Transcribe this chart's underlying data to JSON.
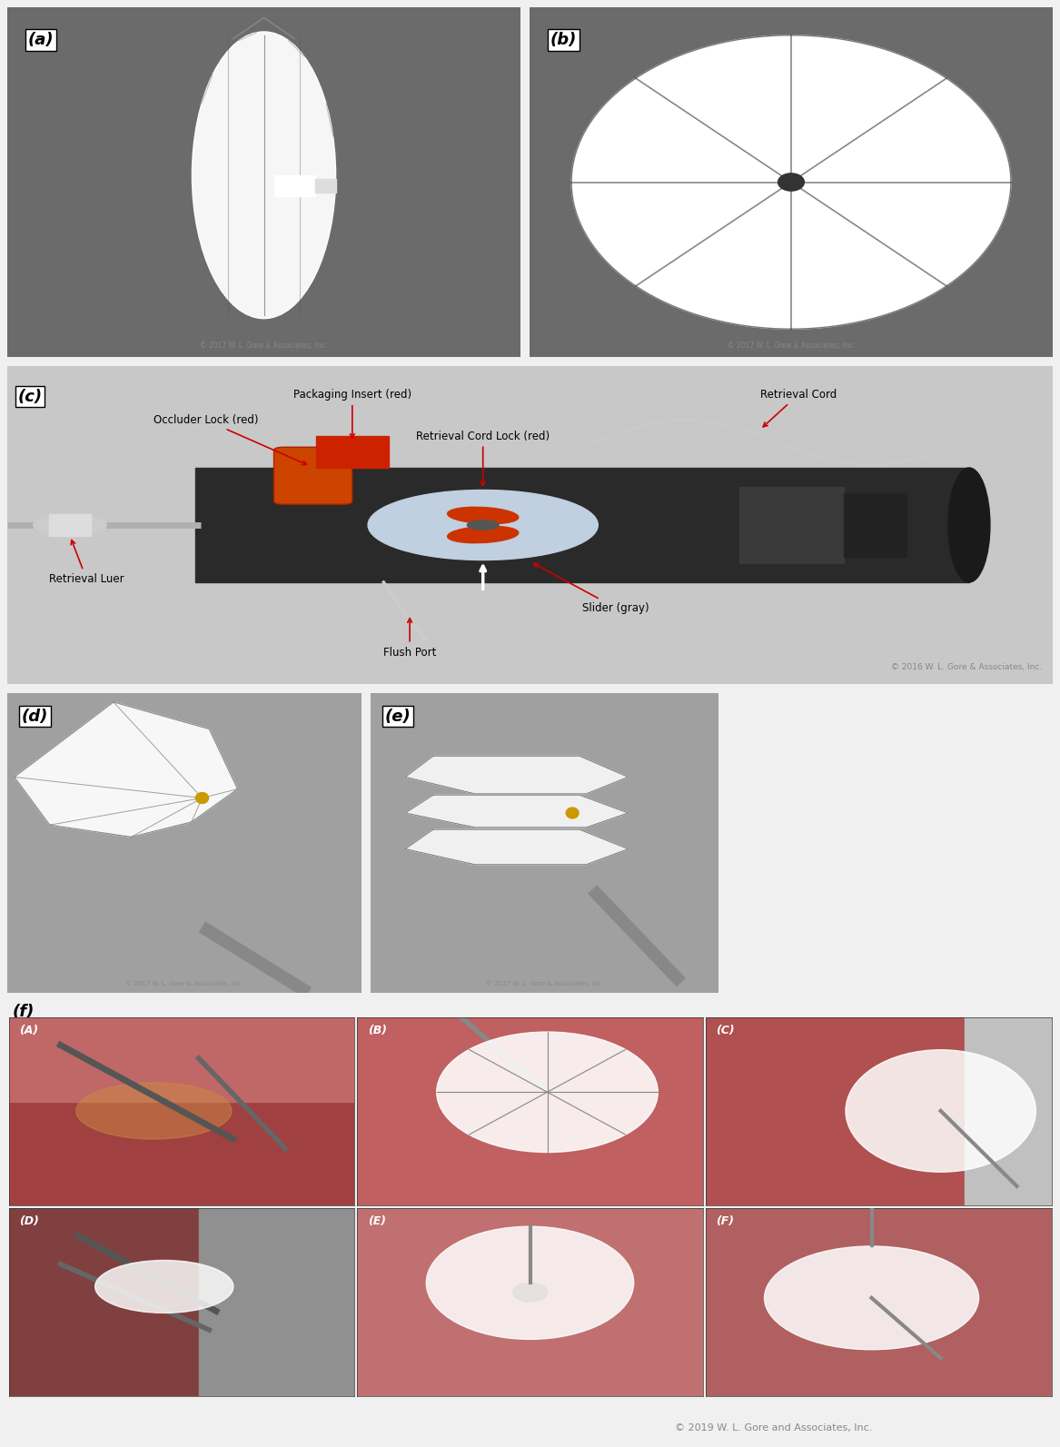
{
  "figure_bg": "#f0f0f0",
  "panel_a_bg": "#6b6b6b",
  "panel_b_bg": "#6b6b6b",
  "panel_c_bg": "#c8c8c8",
  "panel_de_bg": "#a0a0a0",
  "panel_f_bg": "#c8c8c8",
  "label_color": "#000000",
  "annotation_color": "#000000",
  "arrow_color": "#cc0000",
  "copyright_color": "#888888",
  "panel_labels": [
    "(a)",
    "(b)",
    "(c)",
    "(d)",
    "(e)",
    "(f)"
  ],
  "panel_f_sublabels": [
    "(A)",
    "(B)",
    "(C)",
    "(D)",
    "(E)",
    "(F)"
  ],
  "copyright_c": "© 2016 W. L. Gore & Associates, Inc.",
  "copyright_ab": "© 2017 W. L. Gore & Associates, Inc.",
  "copyright_de": "© 2017 W. L. Gore & Associates, Inc.",
  "copyright_f": "© 2019 W. L. Gore and Associates, Inc.",
  "white_color": "#ffffff",
  "red_color": "#cc2200",
  "dark_color": "#222222",
  "light_gray": "#d0d0d0",
  "sub_colors": [
    "#8B3A3A",
    "#c06060",
    "#b05050",
    "#804040",
    "#c07070",
    "#b06060"
  ]
}
